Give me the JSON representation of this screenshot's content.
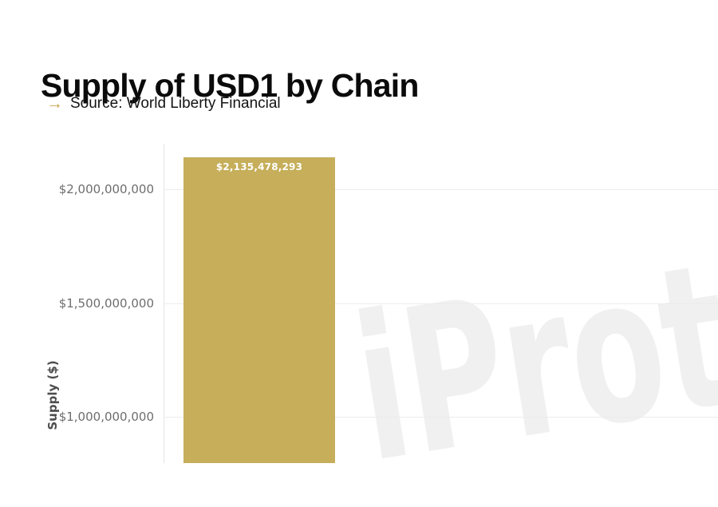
{
  "header": {
    "title": "Supply of USD1 by Chain",
    "source_arrow": "→",
    "source_text": "Source: World Liberty Financial"
  },
  "watermark": {
    "text": "iProt"
  },
  "colors": {
    "bar": "#c6ae5a",
    "accent_gold": "#c9a654",
    "gridline": "#ececec",
    "tick_label": "#6e6e6e",
    "watermark": "#f0f0f0",
    "background": "#ffffff"
  },
  "chart_data": {
    "type": "bar",
    "title": "Supply of USD1 by Chain",
    "source": "World Liberty Financial",
    "ylabel": "Supply ($)",
    "values": [
      2135478293
    ],
    "value_labels": [
      "$2,135,478,293"
    ],
    "bar_color": "#c6ae5a",
    "ytick_values": [
      2000000000,
      1500000000,
      1000000000
    ],
    "ytick_labels": [
      "$2,000,000,000",
      "$1,500,000,000",
      "$1,000,000,000"
    ],
    "visible_y_range": [
      800000000,
      2200000000
    ],
    "grid": true,
    "legend": false,
    "x_axis_labels_visible": false
  }
}
